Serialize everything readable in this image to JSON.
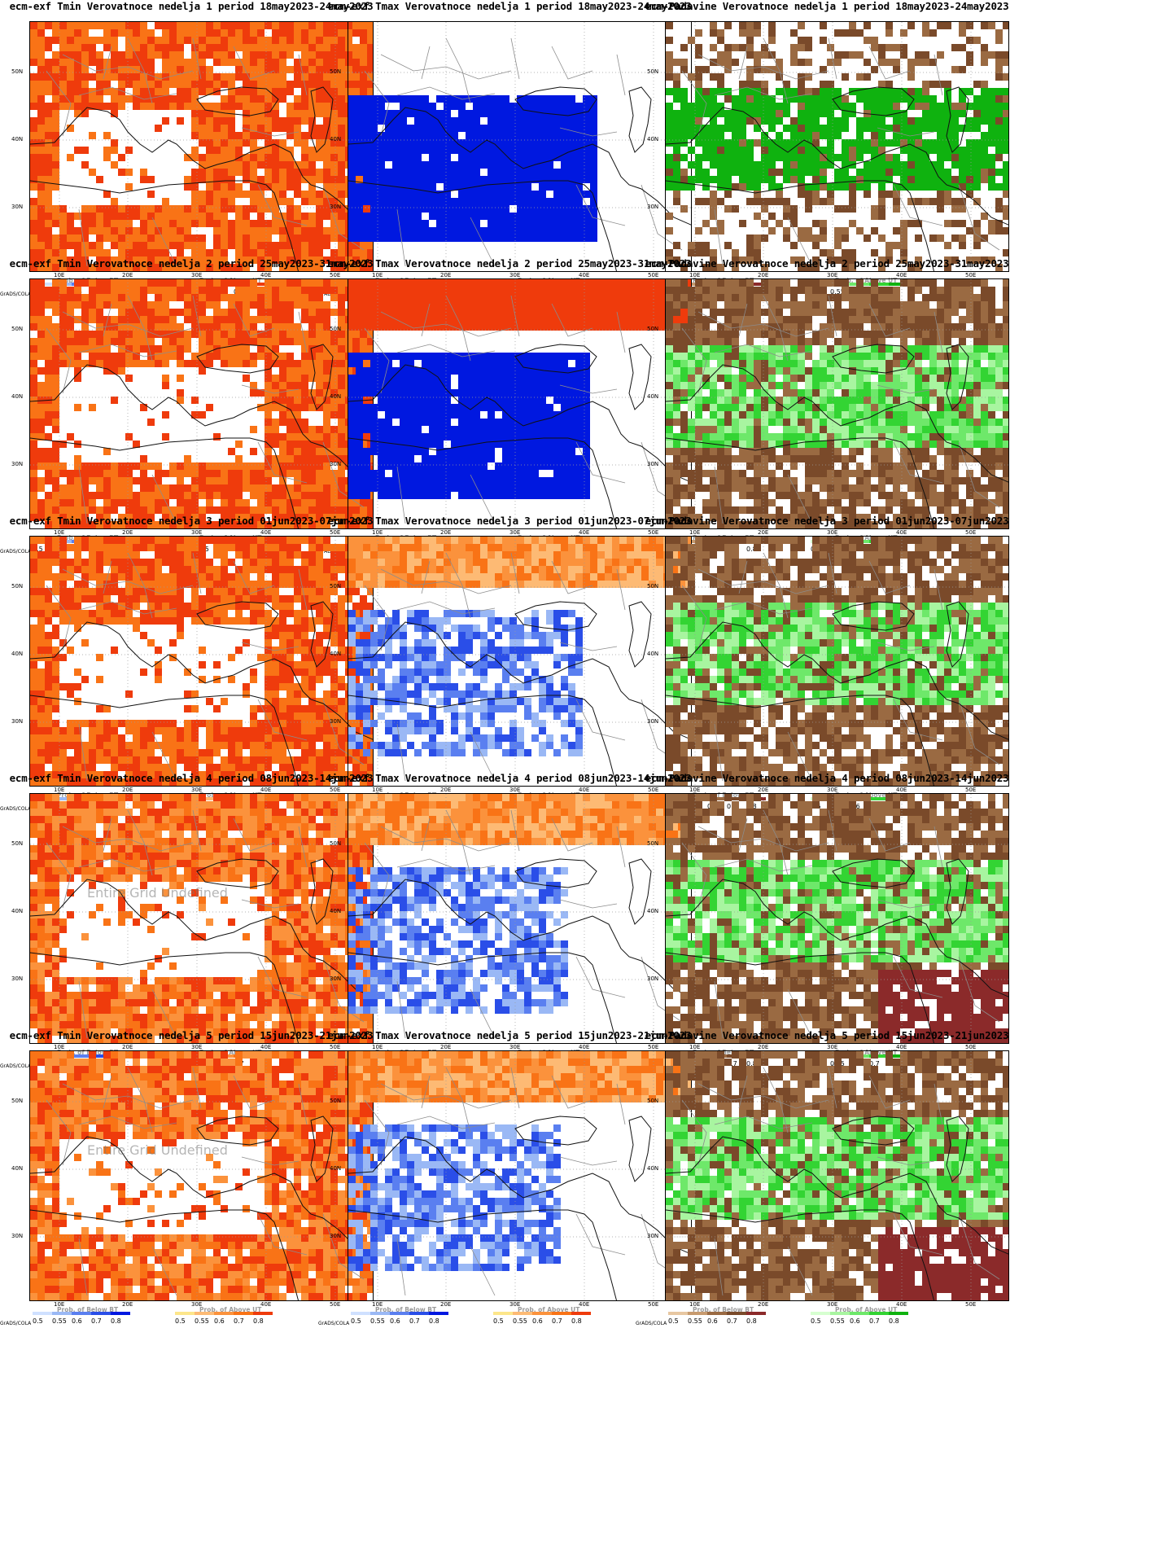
{
  "colors": {
    "tmin_above": [
      "#fde68a",
      "#fdba74",
      "#fb923c",
      "#f97316",
      "#ef3b0c"
    ],
    "tmax_below": [
      "#cfe0ff",
      "#9ab8f5",
      "#5a7ff0",
      "#2a4ee8",
      "#0018e0"
    ],
    "tmax_above": [
      "#fde68a",
      "#fdba74",
      "#fb923c",
      "#f97316",
      "#ef3b0c"
    ],
    "precip_below": [
      "#e7c7a1",
      "#c79a6e",
      "#9a6a42",
      "#7a4a2a",
      "#8b2a2a"
    ],
    "precip_above": [
      "#d6ffd0",
      "#a8f5a0",
      "#6ee86a",
      "#33d433",
      "#0fb20f"
    ]
  },
  "legend": {
    "grads": "GrADS/COLA",
    "below_title": "Prob. of Below BT",
    "above_title": "Prob. of Above UT",
    "ticks": [
      "0.5",
      "0.55",
      "0.6",
      "0.7",
      "0.8"
    ]
  },
  "axes": {
    "lat_labels": [
      "50N",
      "40N",
      "30N"
    ],
    "lon_labels": [
      "10E",
      "20E",
      "30E",
      "40E",
      "50E"
    ]
  },
  "watermark": "Entire Grid Undefined",
  "panels": [
    {
      "title": "ecm-exf Tmin Verovatnoce nedelja 1 period 18may2023-24may2023",
      "var": "tmin",
      "week": 1,
      "watermark": false
    },
    {
      "title": "ecm-exf Tmax Verovatnoce nedelja 1 period 18may2023-24may2023",
      "var": "tmax",
      "week": 1,
      "watermark": false
    },
    {
      "title": "ecm-Padavine Verovatnoce nedelja 1 period 18may2023-24may2023",
      "var": "precip",
      "week": 1,
      "watermark": false
    },
    {
      "title": "ecm-exf Tmin Verovatnoce nedelja 2 period 25may2023-31may2023",
      "var": "tmin",
      "week": 2,
      "watermark": false
    },
    {
      "title": "ecm-exf Tmax Verovatnoce nedelja 2 period 25may2023-31may2023",
      "var": "tmax",
      "week": 2,
      "watermark": false
    },
    {
      "title": "ecm-Padavine Verovatnoce nedelja 2 period 25may2023-31may2023",
      "var": "precip",
      "week": 2,
      "watermark": false
    },
    {
      "title": "ecm-exf Tmin Verovatnoce nedelja 3 period 01jun2023-07jun2023",
      "var": "tmin",
      "week": 3,
      "watermark": false
    },
    {
      "title": "ecm-exf Tmax Verovatnoce nedelja 3 period 01jun2023-07jun2023",
      "var": "tmax",
      "week": 3,
      "watermark": false
    },
    {
      "title": "ecm-Padavine Verovatnoce nedelja 3 period 01jun2023-07jun2023",
      "var": "precip",
      "week": 3,
      "watermark": false
    },
    {
      "title": "ecm-exf Tmin Verovatnoce nedelja 4 period 08jun2023-14jun2023",
      "var": "tmin",
      "week": 4,
      "watermark": true
    },
    {
      "title": "ecm-exf Tmax Verovatnoce nedelja 4 period 08jun2023-14jun2023",
      "var": "tmax",
      "week": 4,
      "watermark": false
    },
    {
      "title": "ecm-Padavine Verovatnoce nedelja 4 period 08jun2023-14jun2023",
      "var": "precip",
      "week": 4,
      "watermark": false
    },
    {
      "title": "ecm-exf Tmin Verovatnoce nedelja 5 period 15jun2023-21jun2023",
      "var": "tmin",
      "week": 5,
      "watermark": true
    },
    {
      "title": "ecm-exf Tmax Verovatnoce nedelja 5 period 15jun2023-21jun2023",
      "var": "tmax",
      "week": 5,
      "watermark": false
    },
    {
      "title": "ecm-Padavine Verovatnoce nedelja 5 period 15jun2023-21jun2023",
      "var": "precip",
      "week": 5,
      "watermark": false
    }
  ]
}
